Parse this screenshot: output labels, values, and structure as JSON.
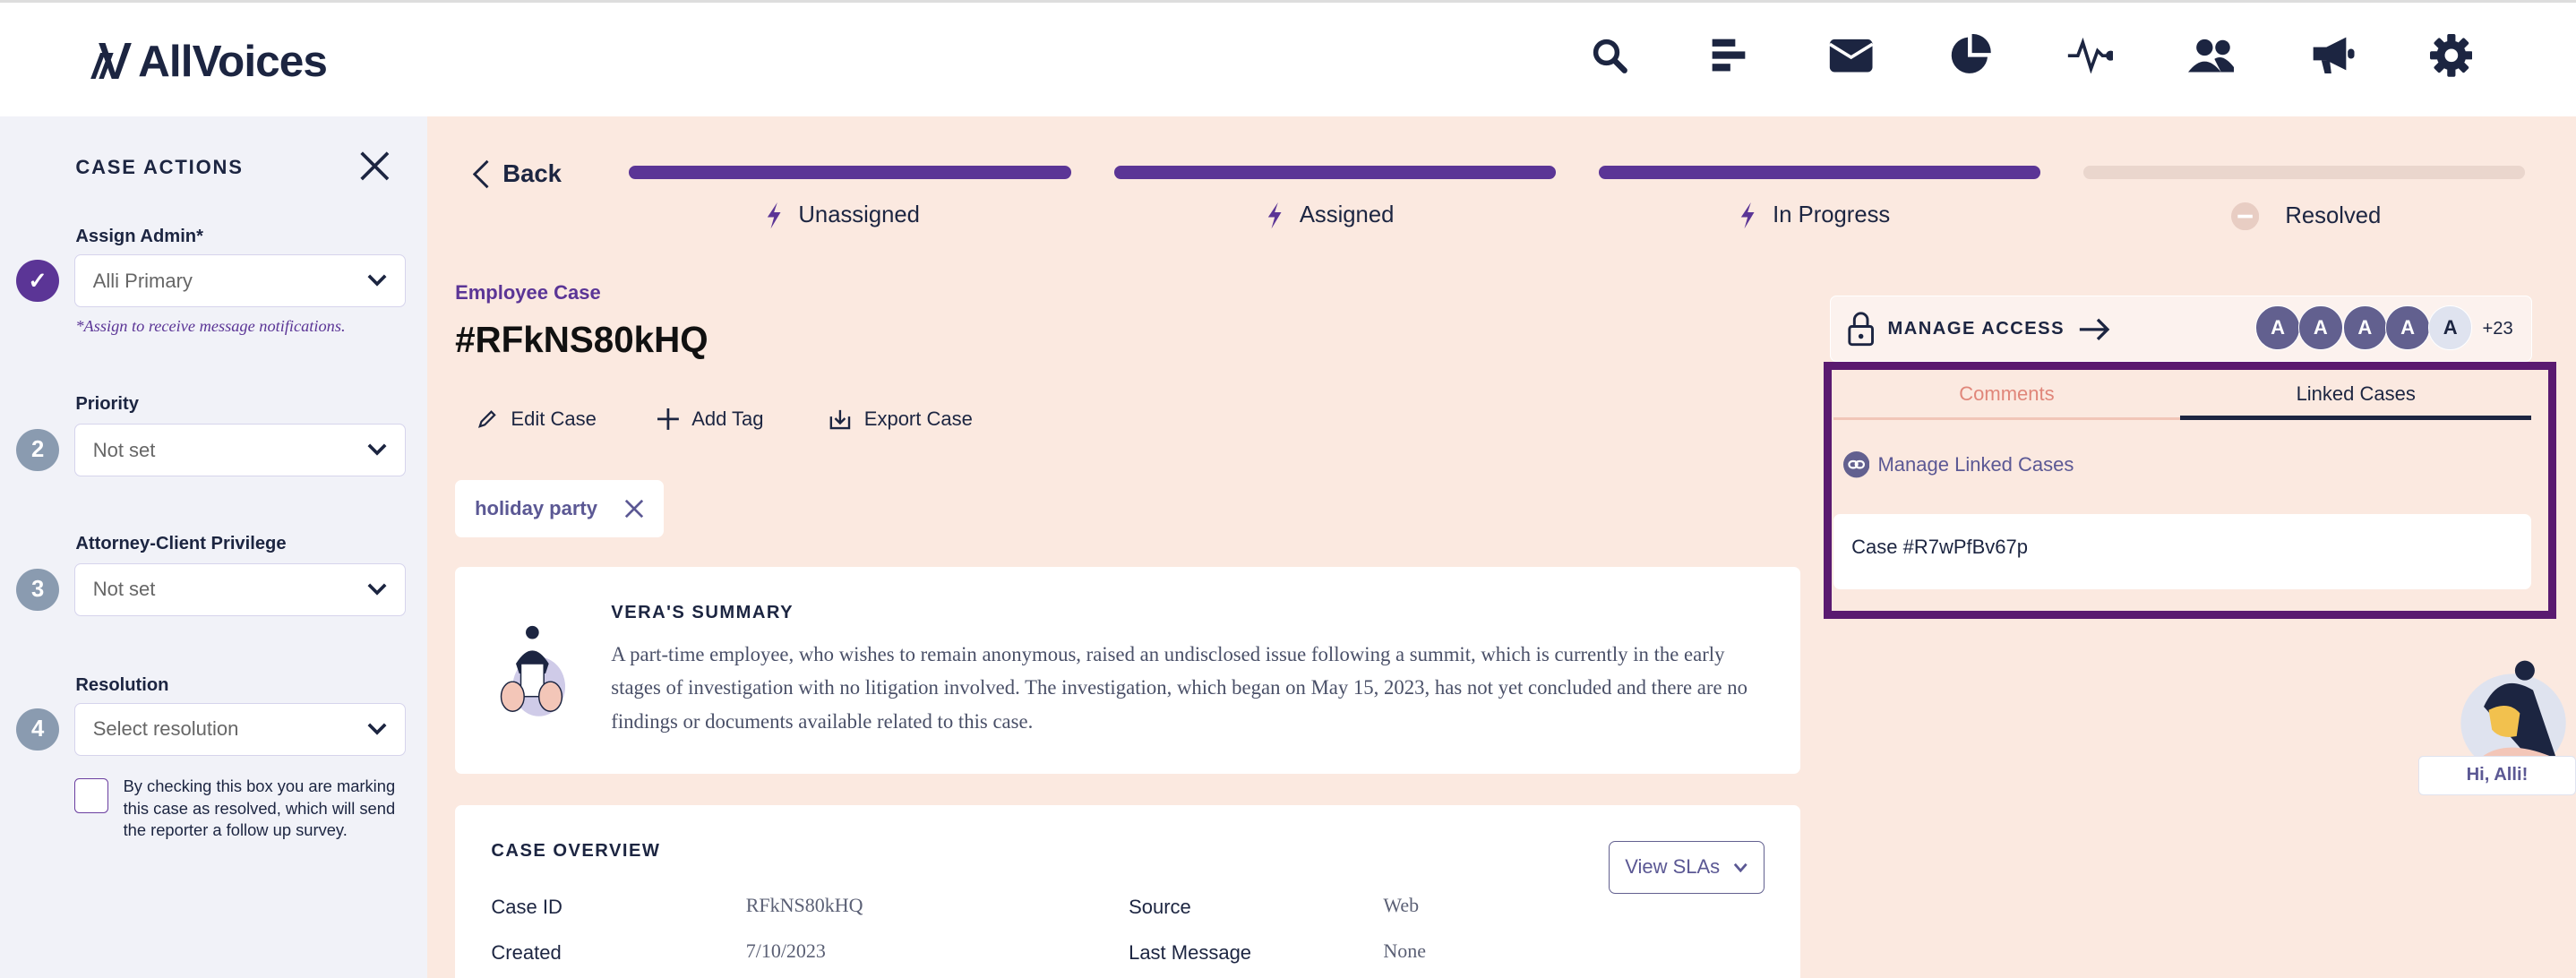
{
  "header": {
    "logo": "AllVoices",
    "icons": [
      "search-icon",
      "bars-icon",
      "mail-icon",
      "pie-chart-icon",
      "activity-icon",
      "users-icon",
      "megaphone-icon",
      "gear-icon"
    ]
  },
  "sidebar": {
    "title": "CASE ACTIONS",
    "fields": [
      {
        "step": "✓",
        "label": "Assign Admin*",
        "value": "Alli Primary",
        "completed": true
      },
      {
        "step": "2",
        "label": "Priority",
        "value": "Not set"
      },
      {
        "step": "3",
        "label": "Attorney-Client Privilege",
        "value": "Not set"
      },
      {
        "step": "4",
        "label": "Resolution",
        "value": "Select resolution"
      }
    ],
    "assign_hint": "*Assign to receive message notifications.",
    "resolve_checkbox_text": "By checking this box you are marking this case as resolved, which will send the reporter a follow up survey.",
    "resolve_checked": false
  },
  "progress": {
    "back_label": "Back",
    "steps": [
      {
        "label": "Unassigned",
        "done": true
      },
      {
        "label": "Assigned",
        "done": true
      },
      {
        "label": "In Progress",
        "done": true
      },
      {
        "label": "Resolved",
        "done": false
      }
    ]
  },
  "case": {
    "type": "Employee Case",
    "id_title": "#RFkNS80kHQ",
    "actions": [
      "Edit Case",
      "Add Tag",
      "Export Case"
    ],
    "tags": [
      "holiday party"
    ]
  },
  "summary": {
    "title": "VERA'S SUMMARY",
    "text": "A part-time employee, who wishes to remain anonymous, raised an undisclosed issue following a summit, which is currently in the early stages of investigation with no litigation involved. The investigation, which began on May 15, 2023, has not yet concluded and there are no findings or documents available related to this case."
  },
  "overview": {
    "title": "CASE OVERVIEW",
    "view_slas": "View SLAs",
    "rows": [
      {
        "k1": "Case ID",
        "v1": "RFkNS80kHQ",
        "k2": "Source",
        "v2": "Web"
      },
      {
        "k1": "Created",
        "v1": "7/10/2023",
        "k2": "Last Message",
        "v2": "None"
      }
    ]
  },
  "access": {
    "label": "MANAGE ACCESS",
    "avatars": [
      "A",
      "A",
      "A",
      "A",
      "A"
    ],
    "more": "+23"
  },
  "panel": {
    "tabs": [
      "Comments",
      "Linked Cases"
    ],
    "active_tab": "Linked Cases",
    "manage_linked": "Manage Linked Cases",
    "linked_cases": [
      "Case #R7wPfBv67p"
    ]
  },
  "assistant": {
    "greeting": "Hi, Alli!"
  },
  "colors": {
    "brand": "#5b3596",
    "navy": "#1c2541",
    "background": "#fbe9e0",
    "highlight": "#5a1a70"
  }
}
